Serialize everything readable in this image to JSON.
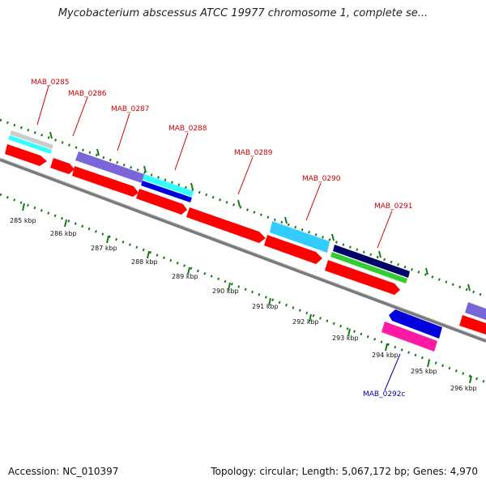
{
  "title": "Mycobacterium abscessus ATCC 19977 chromosome 1, complete se...",
  "footer": {
    "accession": "Accession: NC_010397",
    "summary": "Topology: circular; Length: 5,067,172 bp; Genes: 4,970"
  },
  "colors": {
    "forward_gene": "#ff0000",
    "reverse_gene": "#0000ff",
    "forward_label": "#cc0000",
    "reverse_label": "#0000aa",
    "tick": "#1a7a1a",
    "backbone": "#8a8a8a",
    "magenta": "#ff1aa6",
    "cyan": "#33ccff",
    "aqua": "#33ffff",
    "navy": "#000066",
    "green": "#33cc33",
    "purple": "#7a66d9",
    "grey": "#cccccc",
    "blue": "#0000dd"
  },
  "ticks": [
    {
      "label": "285 kbp"
    },
    {
      "label": "286 kbp"
    },
    {
      "label": "287 kbp"
    },
    {
      "label": "288 kbp"
    },
    {
      "label": "289 kbp"
    },
    {
      "label": "290 kbp"
    },
    {
      "label": "291 kbp"
    },
    {
      "label": "292 kbp"
    },
    {
      "label": "293 kbp"
    },
    {
      "label": "294 kbp"
    },
    {
      "label": "295 kbp"
    },
    {
      "label": "296 kbp"
    }
  ],
  "genes": [
    {
      "label": "MAB_0285"
    },
    {
      "label": "MAB_0286"
    },
    {
      "label": "MAB_0287"
    },
    {
      "label": "MAB_0288"
    },
    {
      "label": "MAB_0289"
    },
    {
      "label": "MAB_0290"
    },
    {
      "label": "MAB_0291"
    },
    {
      "label": "MAB_0292c"
    }
  ]
}
